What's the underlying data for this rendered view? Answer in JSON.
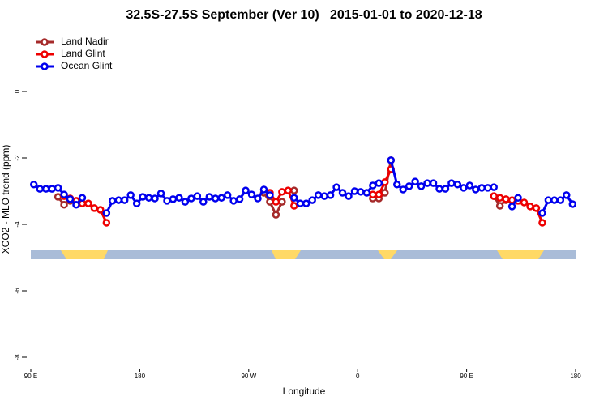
{
  "chart_data": {
    "type": "line",
    "title": "32.5S-27.5S September (Ver 10)   2015-01-01 to 2020-12-18",
    "x_label": "Longitude",
    "y_label": "XCO2 - MLO trend (ppm)",
    "x": [
      92.5,
      97.5,
      102.5,
      107.5,
      112.5,
      117.5,
      122.5,
      127.5,
      132.5,
      137.5,
      142.5,
      147.5,
      152.5,
      157.5,
      162.5,
      167.5,
      172.5,
      177.5,
      182.5,
      187.5,
      192.5,
      197.5,
      202.5,
      207.5,
      212.5,
      217.5,
      222.5,
      227.5,
      232.5,
      237.5,
      242.5,
      247.5,
      252.5,
      257.5,
      262.5,
      267.5,
      272.5,
      277.5,
      282.5,
      287.5,
      292.5,
      297.5,
      302.5,
      307.5,
      312.5,
      317.5,
      322.5,
      327.5,
      332.5,
      337.5,
      342.5,
      347.5,
      352.5,
      357.5,
      362.5,
      367.5,
      372.5,
      377.5,
      382.5,
      387.5,
      392.5,
      397.5,
      402.5,
      407.5,
      412.5,
      417.5,
      422.5,
      427.5,
      432.5,
      437.5,
      442.5,
      447.5,
      452.5,
      457.5,
      462.5,
      467.5,
      472.5,
      477.5,
      482.5,
      487.5,
      492.5,
      497.5,
      502.5,
      507.5,
      512.5,
      517.5,
      522.5,
      527.5,
      532.5,
      537.5
    ],
    "series": [
      {
        "name": "Land Nadir",
        "color": "#a52a2a",
        "values": [
          null,
          null,
          null,
          null,
          -3.17,
          -3.41,
          -3.29,
          null,
          null,
          null,
          null,
          null,
          null,
          null,
          null,
          null,
          null,
          null,
          null,
          null,
          null,
          null,
          null,
          null,
          null,
          null,
          null,
          null,
          null,
          null,
          null,
          null,
          null,
          null,
          null,
          null,
          null,
          null,
          -3.05,
          -3.32,
          -3.71,
          -3.32,
          null,
          -2.98,
          null,
          null,
          null,
          null,
          null,
          null,
          null,
          null,
          null,
          null,
          null,
          null,
          -3.22,
          -3.22,
          -3.05,
          -2.07,
          null,
          null,
          null,
          null,
          null,
          null,
          null,
          null,
          null,
          null,
          null,
          null,
          null,
          null,
          null,
          null,
          -3.15,
          -3.44,
          -3.27,
          null,
          null,
          null,
          null,
          null,
          null,
          null,
          null,
          null,
          null,
          null
        ]
      },
      {
        "name": "Land Glint",
        "color": "#ee0000",
        "values": [
          null,
          null,
          null,
          null,
          null,
          -3.15,
          -3.22,
          -3.29,
          -3.37,
          -3.37,
          -3.51,
          -3.56,
          -3.95,
          null,
          null,
          null,
          null,
          null,
          null,
          null,
          null,
          null,
          null,
          null,
          null,
          null,
          null,
          null,
          null,
          null,
          null,
          null,
          null,
          null,
          null,
          null,
          null,
          null,
          null,
          -3.05,
          -3.32,
          -3.02,
          -2.98,
          -3.44,
          null,
          null,
          null,
          null,
          null,
          null,
          null,
          null,
          null,
          null,
          null,
          null,
          -3.1,
          -3.1,
          -2.73,
          -2.34,
          null,
          null,
          null,
          null,
          null,
          null,
          null,
          null,
          null,
          null,
          null,
          null,
          null,
          null,
          null,
          null,
          -3.15,
          -3.2,
          -3.24,
          -3.27,
          -3.29,
          -3.34,
          -3.46,
          -3.51,
          -3.95,
          null,
          null,
          null,
          null,
          null
        ]
      },
      {
        "name": "Ocean Glint",
        "color": "#0000ee",
        "values": [
          -2.8,
          -2.93,
          -2.93,
          -2.93,
          -2.9,
          -3.1,
          -3.24,
          -3.41,
          -3.2,
          null,
          null,
          null,
          -3.66,
          -3.29,
          -3.27,
          -3.27,
          -3.12,
          -3.37,
          -3.17,
          -3.2,
          -3.22,
          -3.07,
          -3.29,
          -3.24,
          -3.2,
          -3.32,
          -3.22,
          -3.15,
          -3.32,
          -3.17,
          -3.22,
          -3.2,
          -3.12,
          -3.29,
          -3.24,
          -2.98,
          -3.1,
          -3.22,
          -2.95,
          -3.12,
          null,
          null,
          null,
          -3.2,
          -3.37,
          -3.37,
          -3.27,
          -3.12,
          -3.15,
          -3.12,
          -2.88,
          -3.05,
          -3.15,
          -3.0,
          -3.02,
          -3.05,
          -2.83,
          -2.76,
          null,
          -2.07,
          -2.8,
          -2.95,
          -2.85,
          -2.71,
          -2.85,
          -2.76,
          -2.76,
          -2.93,
          -2.93,
          -2.76,
          -2.8,
          -2.9,
          -2.83,
          -2.95,
          -2.9,
          -2.9,
          -2.88,
          null,
          null,
          -3.46,
          -3.2,
          null,
          null,
          null,
          -3.66,
          -3.27,
          -3.27,
          -3.27,
          -3.12,
          -3.39
        ]
      }
    ],
    "xlim": [
      90,
      540
    ],
    "xticks": [
      {
        "value": 90,
        "label": "90 E"
      },
      180,
      {
        "value": 270,
        "label": "90 W"
      },
      {
        "value": 360,
        "label": "0"
      },
      {
        "value": 450,
        "label": "90 E"
      },
      {
        "value": 540,
        "label": "180"
      }
    ],
    "ylim": [
      -8.3,
      1.8
    ],
    "yticks": [
      -8,
      -6,
      -4,
      -2,
      0
    ],
    "legend": "top-left"
  }
}
